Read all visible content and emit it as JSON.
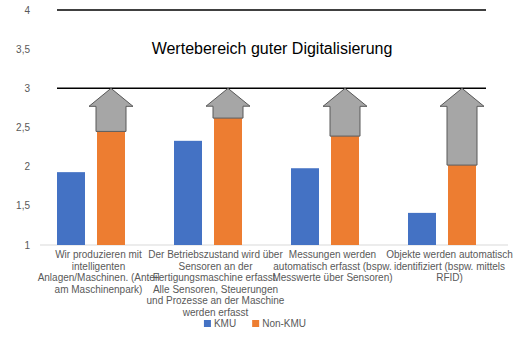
{
  "chart_data": {
    "type": "bar",
    "annotation": "Wertebereich guter Digitalisierung",
    "target_range": [
      3,
      4
    ],
    "categories": [
      "Wir produzieren mit intelligenten Anlagen/Maschinen. (Anteil am Maschinenpark)",
      "Der Betriebszustand wird über Sensoren an der Fertigungsmaschine erfasst. Alle Sensoren, Steuerungen und Prozesse an der Maschine werden erfasst",
      "Messungen werden automatisch erfasst (bspw. Messwerte über Sensoren)",
      "Objekte werden automatisch identifiziert (bspw. mittels RFID)"
    ],
    "series": [
      {
        "name": "KMU",
        "color": "#4472c4",
        "values": [
          1.93,
          2.33,
          1.98,
          1.41
        ]
      },
      {
        "name": "Non-KMU",
        "color": "#ed7d31",
        "values": [
          2.45,
          2.62,
          2.39,
          2.02
        ]
      }
    ],
    "ylim": [
      1,
      4
    ],
    "yticks": [
      1,
      {
        "value": 1.5,
        "label": "1,5"
      },
      2,
      {
        "value": 2.5,
        "label": "2,5"
      },
      3,
      {
        "value": 3.5,
        "label": "3,5"
      },
      4
    ],
    "grid": false,
    "legend": "bottom"
  }
}
